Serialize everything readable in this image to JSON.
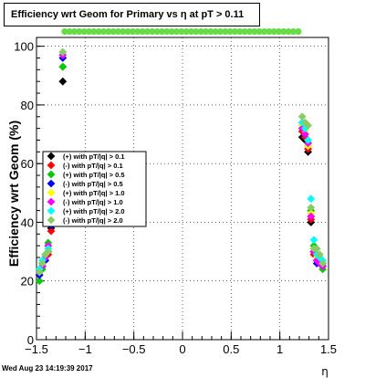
{
  "title": "Efficiency wrt Geom for Primary vs   η at pT > 0.11",
  "timestamp": "Wed Aug 23 14:19:39 2017",
  "chart_data": {
    "type": "scatter",
    "title": "Efficiency wrt Geom for Primary vs   η at pT > 0.11",
    "xlabel": "η",
    "ylabel": "Efficiency wrt Geom (%)",
    "xlim": [
      -1.5,
      1.5
    ],
    "ylim": [
      0,
      105
    ],
    "x_ticks": [
      "−1.5",
      "−1",
      "−0.5",
      "0",
      "0.5",
      "1",
      "1.5"
    ],
    "y_ticks": [
      "0",
      "20",
      "40",
      "60",
      "80",
      "100"
    ],
    "grid": true,
    "legend_position": "left-middle",
    "series": [
      {
        "name": "(+) with pT/|q| > 0.1",
        "color": "#000000",
        "marker": "diamond",
        "points": [
          [
            -1.47,
            23
          ],
          [
            -1.44,
            26
          ],
          [
            -1.41,
            28
          ],
          [
            -1.38,
            30
          ],
          [
            -1.35,
            38
          ],
          [
            -1.32,
            52
          ],
          [
            -1.29,
            60
          ],
          [
            -1.26,
            61
          ],
          [
            -1.23,
            88
          ],
          [
            1.23,
            69
          ],
          [
            1.26,
            68
          ],
          [
            1.29,
            64
          ],
          [
            1.32,
            40
          ],
          [
            1.35,
            30
          ],
          [
            1.38,
            28
          ],
          [
            1.41,
            27
          ],
          [
            1.44,
            26
          ]
        ]
      },
      {
        "name": "(-) with pT/|q| > 0.1",
        "color": "#ff0000",
        "marker": "diamond",
        "points": [
          [
            -1.47,
            22
          ],
          [
            -1.44,
            25
          ],
          [
            -1.41,
            27
          ],
          [
            -1.38,
            29
          ],
          [
            -1.35,
            37
          ],
          [
            -1.32,
            51
          ],
          [
            -1.29,
            59
          ],
          [
            -1.26,
            60
          ],
          [
            -1.23,
            93
          ],
          [
            1.23,
            71
          ],
          [
            1.26,
            69
          ],
          [
            1.29,
            65
          ],
          [
            1.32,
            41
          ],
          [
            1.35,
            29
          ],
          [
            1.38,
            27
          ],
          [
            1.41,
            26
          ],
          [
            1.44,
            25
          ]
        ]
      },
      {
        "name": "(+) with pT/|q| > 0.5",
        "color": "#00cc00",
        "marker": "diamond",
        "points": [
          [
            -1.47,
            20
          ],
          [
            -1.44,
            24
          ],
          [
            -1.41,
            28
          ],
          [
            -1.38,
            33
          ],
          [
            -1.35,
            42
          ],
          [
            -1.32,
            55
          ],
          [
            -1.29,
            60
          ],
          [
            -1.26,
            62
          ],
          [
            -1.23,
            93
          ],
          [
            1.23,
            74
          ],
          [
            1.26,
            72
          ],
          [
            1.29,
            67
          ],
          [
            1.32,
            44
          ],
          [
            1.35,
            32
          ],
          [
            1.38,
            29
          ],
          [
            1.41,
            28
          ],
          [
            1.44,
            24
          ]
        ]
      },
      {
        "name": "(-) with pT/|q| > 0.5",
        "color": "#0000ff",
        "marker": "diamond",
        "points": [
          [
            -1.47,
            22
          ],
          [
            -1.44,
            25
          ],
          [
            -1.41,
            27
          ],
          [
            -1.38,
            30
          ],
          [
            -1.35,
            39
          ],
          [
            -1.32,
            52
          ],
          [
            -1.29,
            59
          ],
          [
            -1.26,
            60
          ],
          [
            -1.23,
            96
          ],
          [
            1.23,
            72
          ],
          [
            1.26,
            70
          ],
          [
            1.29,
            66
          ],
          [
            1.32,
            42
          ],
          [
            1.35,
            30
          ],
          [
            1.38,
            26
          ],
          [
            1.41,
            27
          ],
          [
            1.44,
            25
          ]
        ]
      },
      {
        "name": "(+) with pT/|q| > 1.0",
        "color": "#ffff00",
        "marker": "diamond",
        "points": [
          [
            -1.47,
            23
          ],
          [
            -1.44,
            26
          ],
          [
            -1.41,
            28
          ],
          [
            -1.38,
            31
          ],
          [
            -1.35,
            40
          ],
          [
            -1.32,
            53
          ],
          [
            -1.29,
            60
          ],
          [
            -1.26,
            61
          ],
          [
            -1.23,
            97
          ],
          [
            1.23,
            73
          ],
          [
            1.26,
            71
          ],
          [
            1.29,
            66
          ],
          [
            1.32,
            43
          ],
          [
            1.35,
            31
          ],
          [
            1.38,
            28
          ],
          [
            1.41,
            27
          ],
          [
            1.44,
            26
          ]
        ]
      },
      {
        "name": "(-) with pT/|q| > 1.0",
        "color": "#ff00ff",
        "marker": "diamond",
        "points": [
          [
            -1.47,
            23
          ],
          [
            -1.44,
            25
          ],
          [
            -1.41,
            28
          ],
          [
            -1.38,
            32
          ],
          [
            -1.35,
            41
          ],
          [
            -1.32,
            53
          ],
          [
            -1.29,
            59
          ],
          [
            -1.26,
            61
          ],
          [
            -1.23,
            97
          ],
          [
            1.23,
            72
          ],
          [
            1.26,
            70
          ],
          [
            1.29,
            67
          ],
          [
            1.32,
            42
          ],
          [
            1.35,
            30
          ],
          [
            1.38,
            27
          ],
          [
            1.41,
            26
          ],
          [
            1.44,
            25
          ]
        ]
      },
      {
        "name": "(+) with pT/|q| > 2.0",
        "color": "#00ffff",
        "marker": "diamond",
        "points": [
          [
            -1.47,
            24
          ],
          [
            -1.44,
            27
          ],
          [
            -1.41,
            29
          ],
          [
            -1.38,
            31
          ],
          [
            -1.35,
            40
          ],
          [
            -1.32,
            54
          ],
          [
            -1.29,
            60
          ],
          [
            -1.26,
            62
          ],
          [
            -1.23,
            98
          ],
          [
            1.23,
            74
          ],
          [
            1.26,
            72
          ],
          [
            1.29,
            68
          ],
          [
            1.32,
            48
          ],
          [
            1.35,
            34
          ],
          [
            1.38,
            29
          ],
          [
            1.41,
            28
          ],
          [
            1.44,
            27
          ]
        ]
      },
      {
        "name": "(-) with pT/|q| > 2.0",
        "color": "#88cc66",
        "marker": "diamond",
        "points": [
          [
            -1.47,
            23
          ],
          [
            -1.44,
            26
          ],
          [
            -1.41,
            29
          ],
          [
            -1.38,
            30
          ],
          [
            -1.35,
            41
          ],
          [
            -1.32,
            53
          ],
          [
            -1.29,
            61
          ],
          [
            -1.26,
            62
          ],
          [
            -1.23,
            98
          ],
          [
            1.23,
            76
          ],
          [
            1.26,
            74
          ],
          [
            1.29,
            73
          ],
          [
            1.32,
            45
          ],
          [
            1.35,
            31
          ],
          [
            1.38,
            31
          ],
          [
            1.41,
            29
          ],
          [
            1.44,
            26
          ]
        ]
      },
      {
        "name": "",
        "color": "#66dd44",
        "marker": "circle",
        "points": [
          [
            -1.21,
            105
          ],
          [
            -1.16,
            105
          ],
          [
            -1.11,
            105
          ],
          [
            -1.06,
            105
          ],
          [
            -1.01,
            105
          ],
          [
            -0.96,
            105
          ],
          [
            -0.91,
            105
          ],
          [
            -0.86,
            105
          ],
          [
            -0.81,
            105
          ],
          [
            -0.76,
            105
          ],
          [
            -0.71,
            105
          ],
          [
            -0.66,
            105
          ],
          [
            -0.61,
            105
          ],
          [
            -0.56,
            105
          ],
          [
            -0.51,
            105
          ],
          [
            -0.46,
            105
          ],
          [
            -0.41,
            105
          ],
          [
            -0.36,
            105
          ],
          [
            -0.31,
            105
          ],
          [
            -0.26,
            105
          ],
          [
            -0.21,
            105
          ],
          [
            -0.16,
            105
          ],
          [
            -0.11,
            105
          ],
          [
            -0.06,
            105
          ],
          [
            -0.01,
            105
          ],
          [
            0.04,
            105
          ],
          [
            0.09,
            105
          ],
          [
            0.14,
            105
          ],
          [
            0.19,
            105
          ],
          [
            0.24,
            105
          ],
          [
            0.29,
            105
          ],
          [
            0.34,
            105
          ],
          [
            0.39,
            105
          ],
          [
            0.44,
            105
          ],
          [
            0.49,
            105
          ],
          [
            0.54,
            105
          ],
          [
            0.59,
            105
          ],
          [
            0.64,
            105
          ],
          [
            0.69,
            105
          ],
          [
            0.74,
            105
          ],
          [
            0.79,
            105
          ],
          [
            0.84,
            105
          ],
          [
            0.89,
            105
          ],
          [
            0.94,
            105
          ],
          [
            0.99,
            105
          ],
          [
            1.04,
            105
          ],
          [
            1.09,
            105
          ],
          [
            1.14,
            105
          ],
          [
            1.19,
            105
          ]
        ]
      }
    ]
  }
}
